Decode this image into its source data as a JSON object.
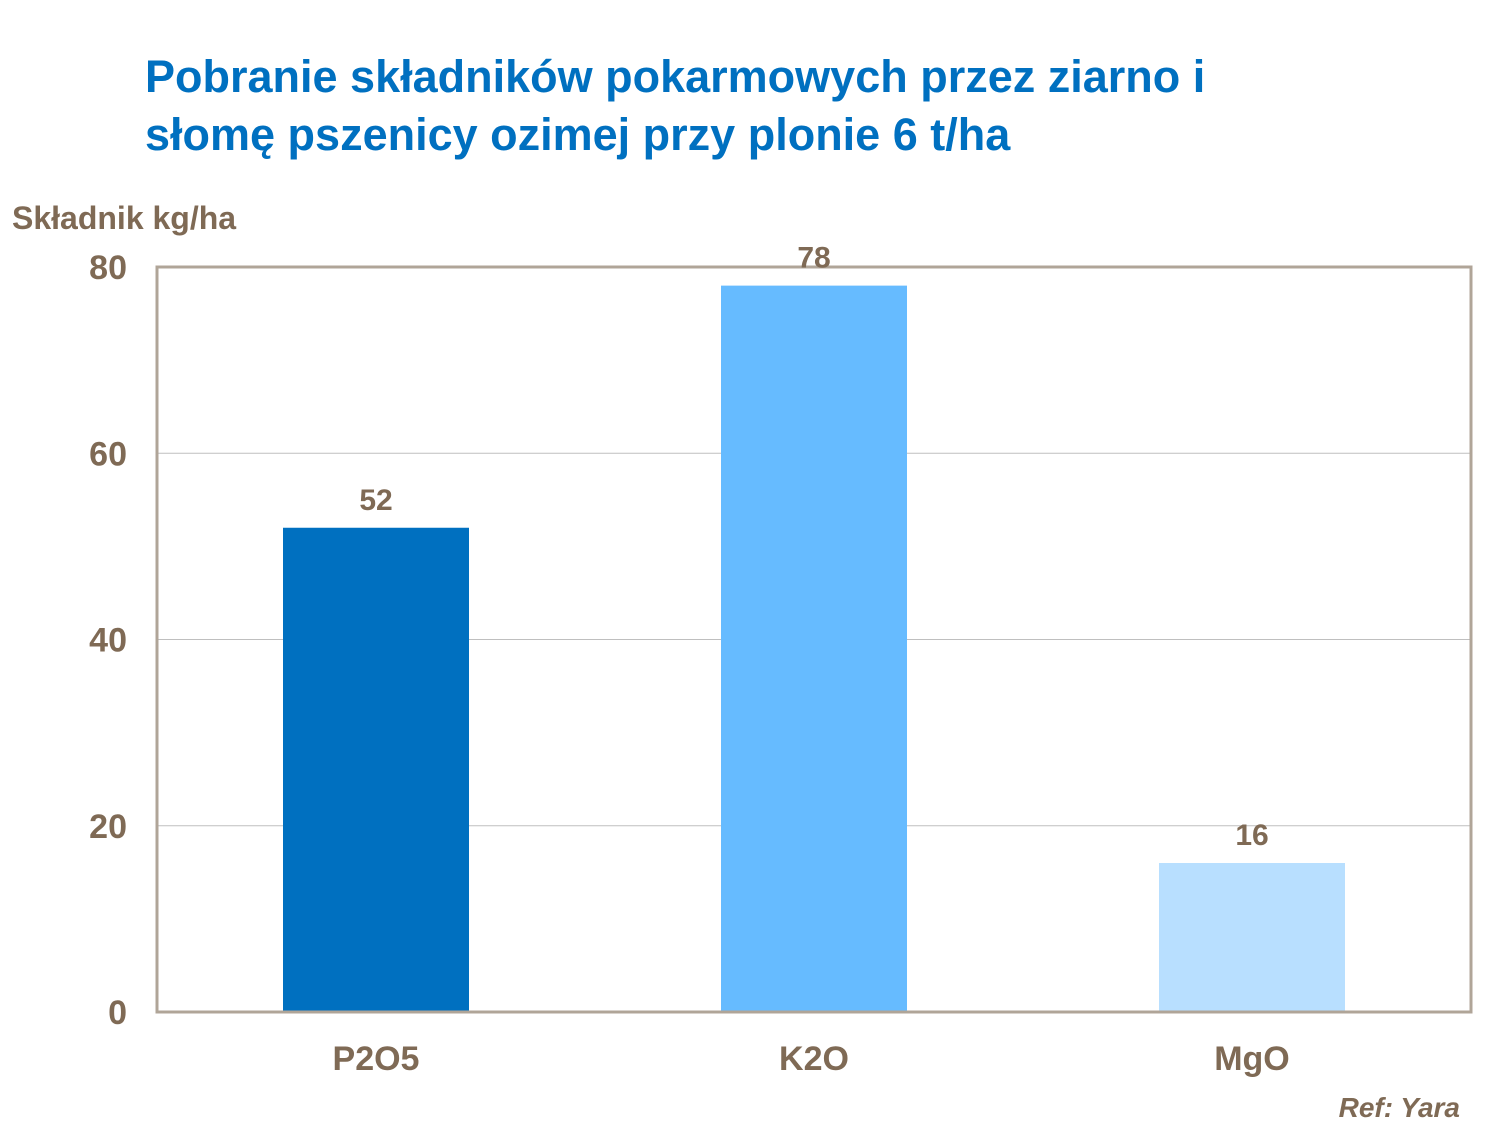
{
  "chart_data": {
    "type": "bar",
    "title_lines": [
      "Pobranie składników pokarmowych przez ziarno i",
      "słomę pszenicy ozimej przy plonie 6 t/ha"
    ],
    "ylabel": "Składnik kg/ha",
    "xlabel": "",
    "categories": [
      "P2O5",
      "K2O",
      "MgO"
    ],
    "values": [
      52,
      78,
      16
    ],
    "data_labels": [
      "52",
      "78",
      "16"
    ],
    "colors": [
      "#0070C0",
      "#66BBFF",
      "#B8DFFF"
    ],
    "ylim": [
      0,
      80
    ],
    "yticks": [
      0,
      20,
      40,
      60,
      80
    ],
    "grid": true,
    "legend": "none",
    "source_note": "Ref: Yara"
  },
  "style": {
    "title_color": "#0070C0",
    "text_color": "#7F6A55",
    "axis_color": "#B0A598",
    "grid_color": "#BFBFBF"
  }
}
